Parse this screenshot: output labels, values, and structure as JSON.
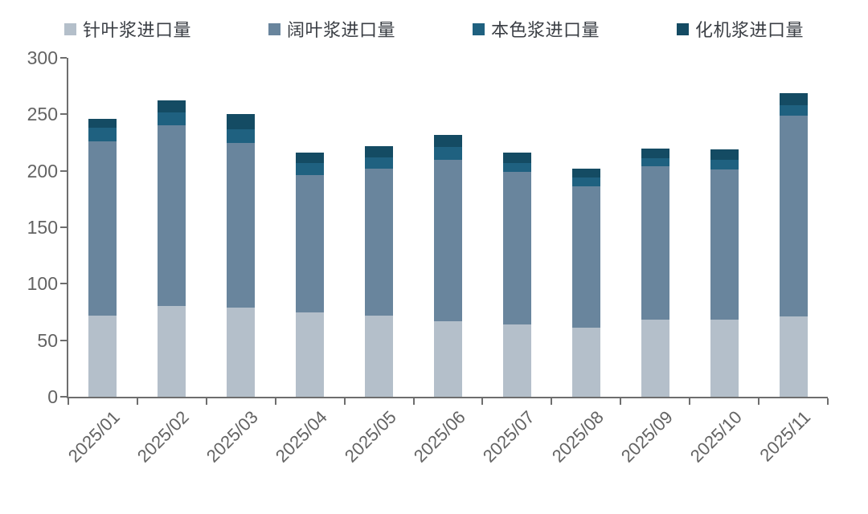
{
  "chart_data": {
    "type": "bar",
    "stacked": true,
    "title": "",
    "xlabel": "",
    "ylabel": "",
    "categories": [
      "2025/01",
      "2025/02",
      "2025/03",
      "2025/04",
      "2025/05",
      "2025/06",
      "2025/07",
      "2025/08",
      "2025/09",
      "2025/10",
      "2025/11"
    ],
    "series": [
      {
        "name": "针叶浆进口量",
        "color": "#b4bfca",
        "values": [
          72,
          80,
          79,
          75,
          72,
          67,
          64,
          61,
          68,
          68,
          71
        ]
      },
      {
        "name": "阔叶浆进口量",
        "color": "#69859d",
        "values": [
          154,
          160,
          146,
          121,
          130,
          143,
          135,
          125,
          136,
          133,
          178
        ]
      },
      {
        "name": "本色浆进口量",
        "color": "#1f6180",
        "values": [
          12,
          12,
          12,
          11,
          10,
          11,
          8,
          8,
          7,
          9,
          9
        ]
      },
      {
        "name": "化机浆进口量",
        "color": "#144b63",
        "values": [
          8,
          10,
          13,
          9,
          10,
          11,
          9,
          8,
          9,
          9,
          11
        ]
      }
    ],
    "totals": [
      246,
      262,
      250,
      216,
      222,
      232,
      216,
      202,
      220,
      219,
      269
    ],
    "ylim": [
      0,
      300
    ],
    "yticks": [
      0,
      50,
      100,
      150,
      200,
      250,
      300
    ],
    "grid": false,
    "legend_position": "top",
    "colors": {
      "axis": "#6e6e6e",
      "tick_label": "#636363",
      "legend_text": "#3a3e44"
    }
  }
}
